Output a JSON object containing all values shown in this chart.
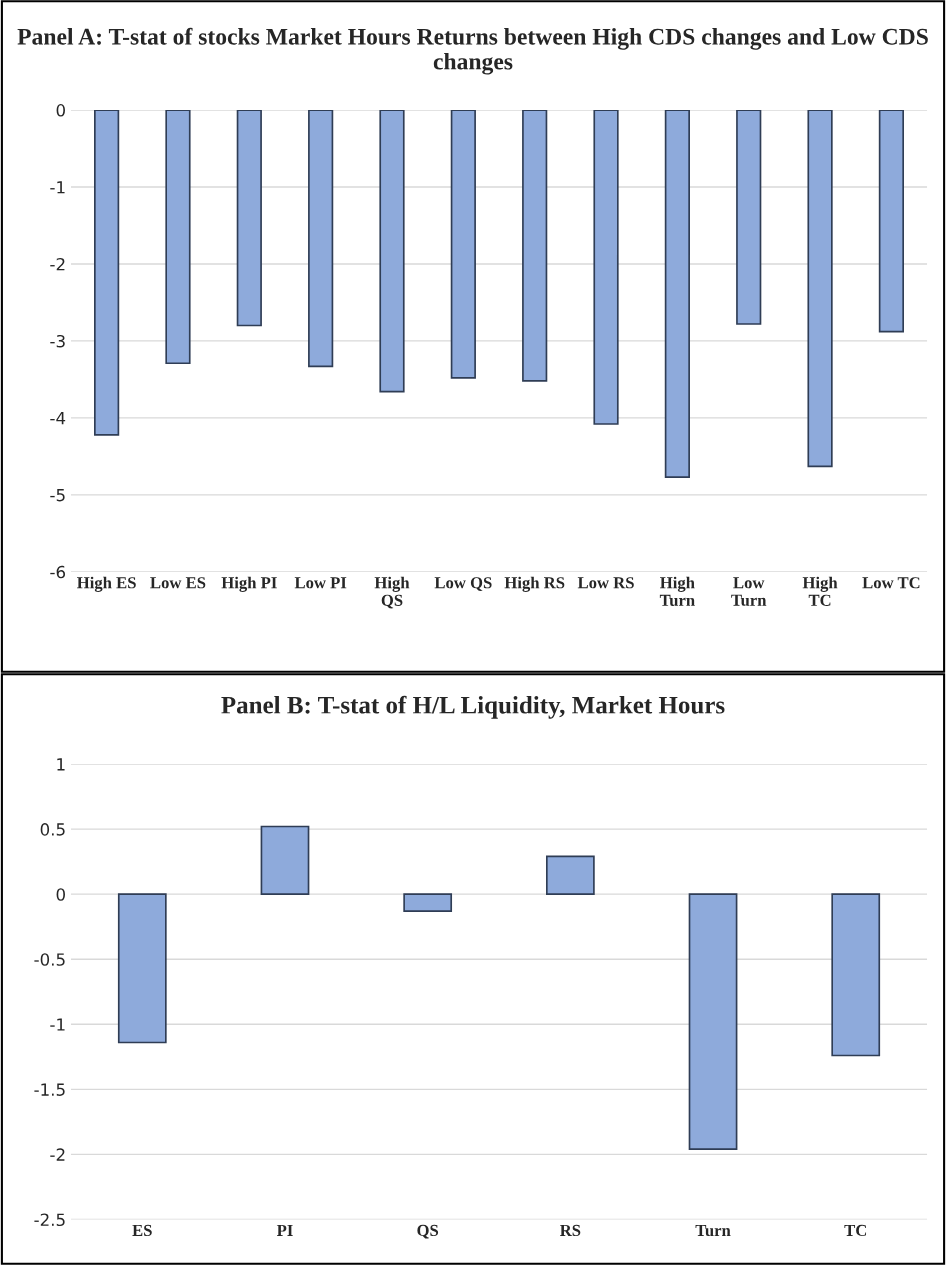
{
  "chart_data": [
    {
      "type": "bar",
      "title": "Panel A: T-stat of stocks Market Hours Returns between High CDS changes and Low CDS changes",
      "categories": [
        "High ES",
        "Low ES",
        "High PI",
        "Low PI",
        "High\nQS",
        "Low QS",
        "High RS",
        "Low RS",
        "High\nTurn",
        "Low\nTurn",
        "High\nTC",
        "Low TC"
      ],
      "values": [
        -4.22,
        -3.29,
        -2.8,
        -3.33,
        -3.66,
        -3.48,
        -3.52,
        -4.08,
        -4.77,
        -2.78,
        -4.63,
        -2.88
      ],
      "color": "#8eaadb",
      "ylim": [
        -6,
        0
      ],
      "yticks": [
        -6,
        -5,
        -4,
        -3,
        -2,
        -1,
        0
      ],
      "grid": "y"
    },
    {
      "type": "bar",
      "title": "Panel B: T-stat of H/L Liquidity, Market Hours",
      "categories": [
        "ES",
        "PI",
        "QS",
        "RS",
        "Turn",
        "TC"
      ],
      "values": [
        -1.14,
        0.52,
        -0.13,
        0.29,
        -1.96,
        -1.24
      ],
      "color": "#8eaadb",
      "ylim": [
        -2.5,
        1
      ],
      "yticks": [
        -2.5,
        -2,
        -1.5,
        -1,
        -0.5,
        0,
        0.5,
        1
      ],
      "grid": "y"
    }
  ]
}
